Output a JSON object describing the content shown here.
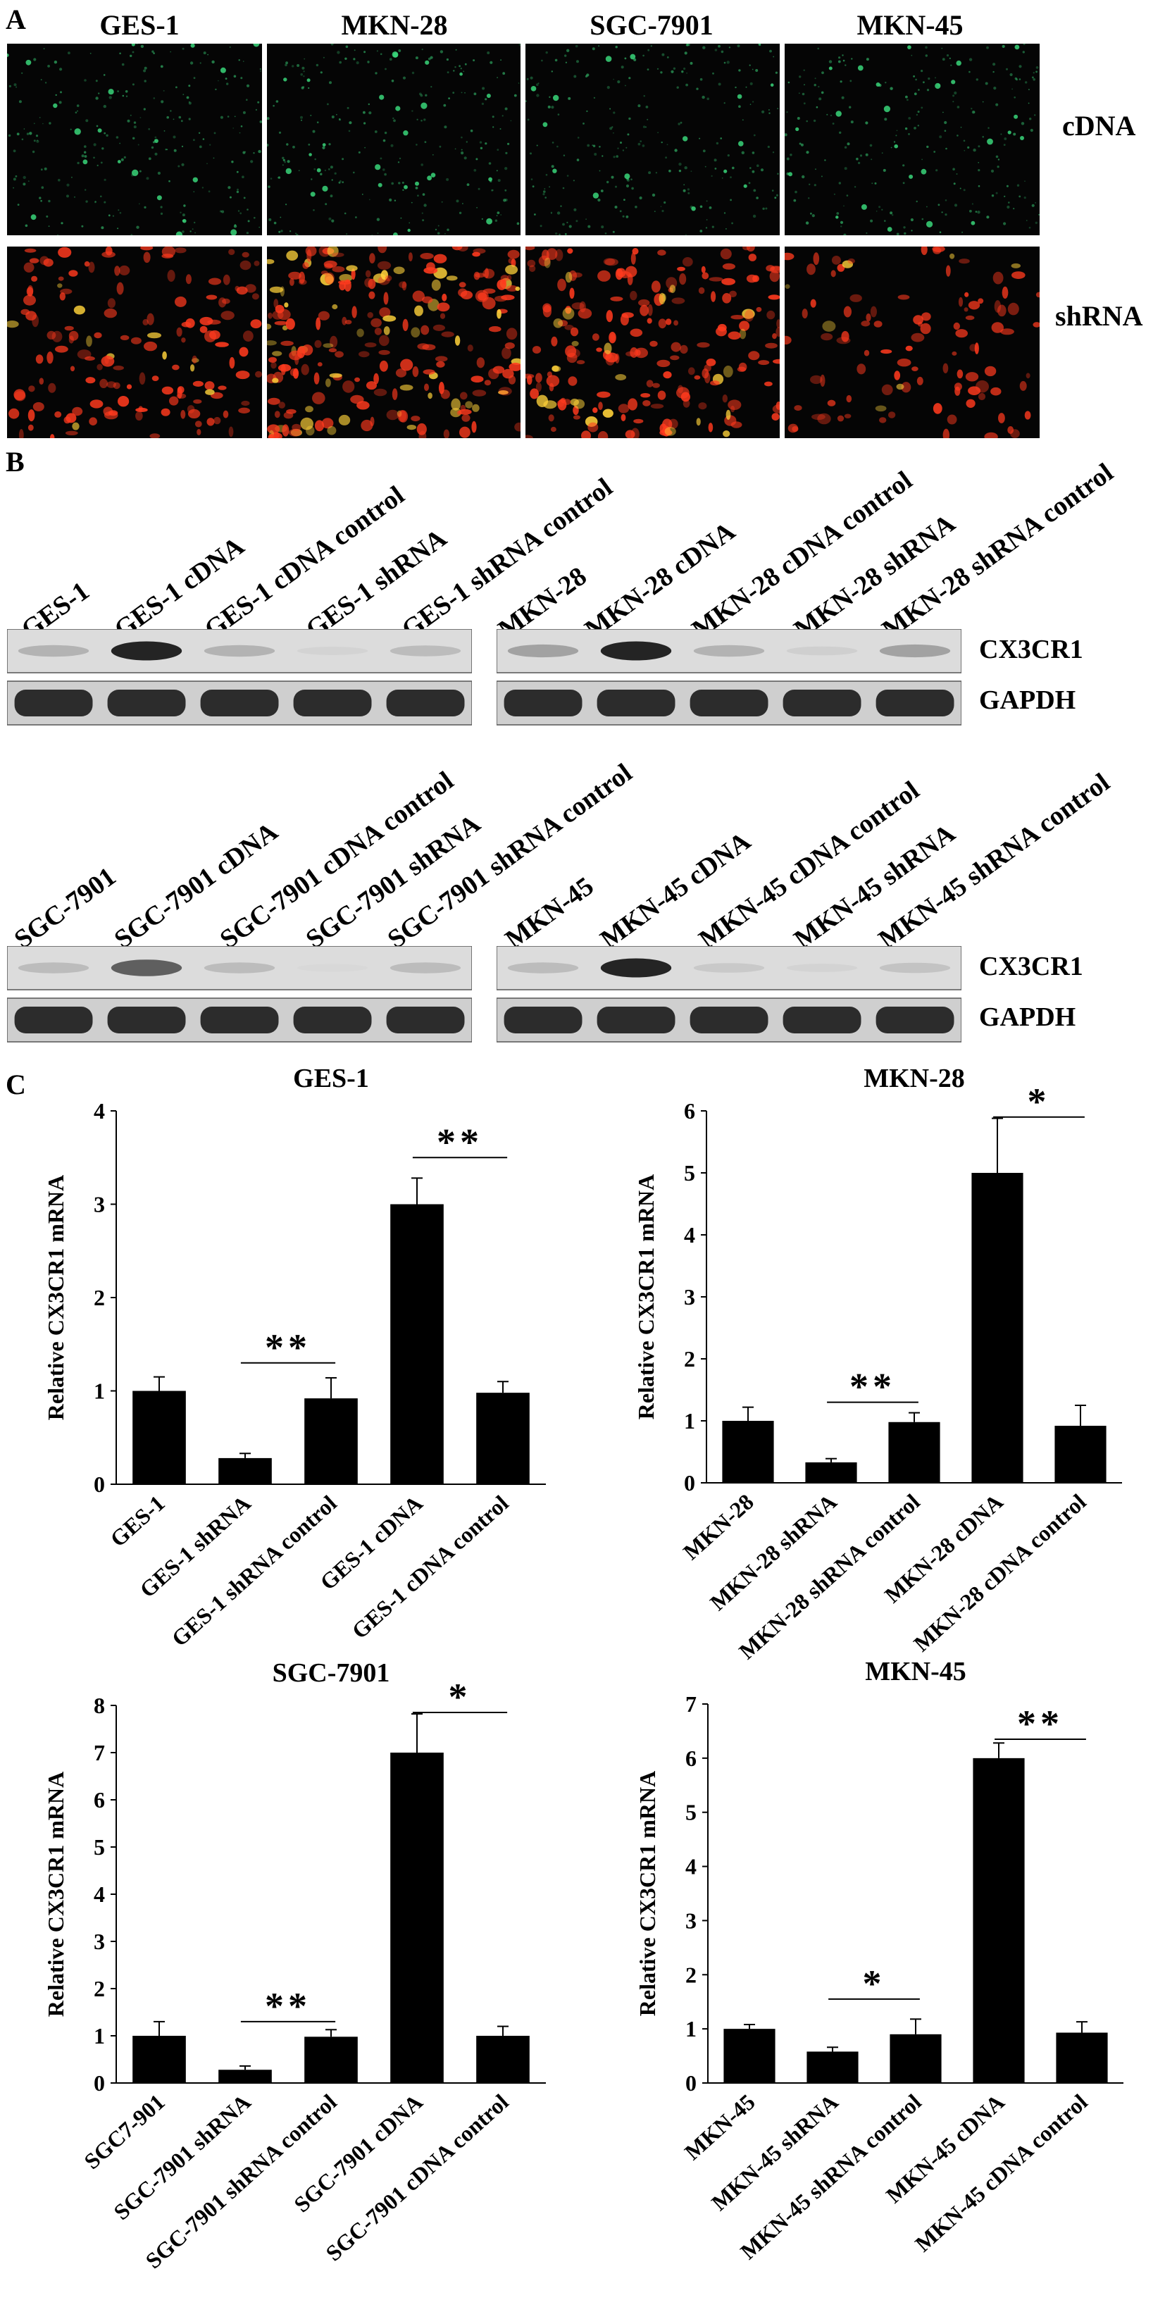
{
  "panels": {
    "a": "A",
    "b": "B",
    "c": "C"
  },
  "panel_a": {
    "columns": [
      "GES-1",
      "MKN-28",
      "SGC-7901",
      "MKN-45"
    ],
    "rows": [
      "cDNA",
      "shRNA"
    ],
    "colors": {
      "cdna": "#3ad67a",
      "shrna": "#ff3a1e",
      "shrna_bright": "#ffd23a",
      "background": "#050505"
    }
  },
  "panel_b": {
    "blots": [
      {
        "lanes": [
          "GES-1",
          "GES-1 cDNA",
          "GES-1 cDNA control",
          "GES-1 shRNA",
          "GES-1 shRNA control"
        ],
        "cx3cr1_intensity": [
          0.35,
          0.95,
          0.35,
          0.1,
          0.3
        ]
      },
      {
        "lanes": [
          "MKN-28",
          "MKN-28 cDNA",
          "MKN-28 cDNA control",
          "MKN-28 shRNA",
          "MKN-28 shRNA control"
        ],
        "cx3cr1_intensity": [
          0.45,
          0.95,
          0.35,
          0.15,
          0.45
        ]
      },
      {
        "lanes": [
          "SGC-7901",
          "SGC-7901 cDNA",
          "SGC-7901 cDNA control",
          "SGC-7901 shRNA",
          "SGC-7901 shRNA control"
        ],
        "cx3cr1_intensity": [
          0.3,
          0.75,
          0.3,
          0.05,
          0.3
        ]
      },
      {
        "lanes": [
          "MKN-45",
          "MKN-45 cDNA",
          "MKN-45 cDNA control",
          "MKN-45 shRNA",
          "MKN-45 shRNA control"
        ],
        "cx3cr1_intensity": [
          0.3,
          0.95,
          0.2,
          0.1,
          0.25
        ]
      }
    ],
    "band_labels": [
      "CX3CR1",
      "GAPDH"
    ]
  },
  "chart_data": [
    {
      "type": "bar",
      "title": "GES-1",
      "ylabel": "Relative CX3CR1 mRNA",
      "categories": [
        "GES-1",
        "GES-1 shRNA",
        "GES-1 shRNA control",
        "GES-1 cDNA",
        "GES-1 cDNA control"
      ],
      "values": [
        1.0,
        0.28,
        0.92,
        3.0,
        0.98
      ],
      "errors": [
        0.15,
        0.05,
        0.22,
        0.28,
        0.12
      ],
      "ylim": [
        0,
        4
      ],
      "yticks": [
        "0",
        "1",
        "2",
        "3",
        "4"
      ],
      "annotations": [
        {
          "text": "**",
          "from": 1,
          "to": 2,
          "y": 1.3
        },
        {
          "text": "**",
          "from": 3,
          "to": 4,
          "y": 3.5
        }
      ]
    },
    {
      "type": "bar",
      "title": "MKN-28",
      "ylabel": "Relative CX3CR1 mRNA",
      "categories": [
        "MKN-28",
        "MKN-28 shRNA",
        "MKN-28 shRNA control",
        "MKN-28 cDNA",
        "MKN-28 cDNA control"
      ],
      "values": [
        1.0,
        0.33,
        0.98,
        5.0,
        0.92
      ],
      "errors": [
        0.22,
        0.06,
        0.15,
        0.88,
        0.33
      ],
      "ylim": [
        0,
        6
      ],
      "yticks": [
        "0",
        "1",
        "2",
        "3",
        "4",
        "5",
        "6"
      ],
      "annotations": [
        {
          "text": "**",
          "from": 1,
          "to": 2,
          "y": 1.3
        },
        {
          "text": "*",
          "from": 3,
          "to": 4,
          "y": 5.9
        }
      ]
    },
    {
      "type": "bar",
      "title": "SGC-7901",
      "ylabel": "Relative CX3CR1 mRNA",
      "categories": [
        "SGC7-901",
        "SGC-7901 shRNA",
        "SGC-7901 shRNA control",
        "SGC-7901 cDNA",
        "SGC-7901 cDNA control"
      ],
      "values": [
        1.0,
        0.28,
        0.98,
        7.0,
        1.0
      ],
      "errors": [
        0.3,
        0.08,
        0.15,
        0.82,
        0.2
      ],
      "ylim": [
        0,
        8
      ],
      "yticks": [
        "0",
        "1",
        "2",
        "3",
        "4",
        "5",
        "6",
        "7",
        "8"
      ],
      "annotations": [
        {
          "text": "**",
          "from": 1,
          "to": 2,
          "y": 1.3
        },
        {
          "text": "*",
          "from": 3,
          "to": 4,
          "y": 7.85
        }
      ]
    },
    {
      "type": "bar",
      "title": "MKN-45",
      "ylabel": "Relative CX3CR1 mRNA",
      "categories": [
        "MKN-45",
        "MKN-45 shRNA",
        "MKN-45 shRNA control",
        "MKN-45 cDNA",
        "MKN-45 cDNA control"
      ],
      "values": [
        1.0,
        0.58,
        0.9,
        6.0,
        0.93
      ],
      "errors": [
        0.08,
        0.08,
        0.28,
        0.28,
        0.2
      ],
      "ylim": [
        0,
        7
      ],
      "yticks": [
        "0",
        "1",
        "2",
        "3",
        "4",
        "5",
        "6",
        "7"
      ],
      "annotations": [
        {
          "text": "*",
          "from": 1,
          "to": 2,
          "y": 1.55
        },
        {
          "text": "**",
          "from": 3,
          "to": 4,
          "y": 6.35
        }
      ]
    }
  ]
}
